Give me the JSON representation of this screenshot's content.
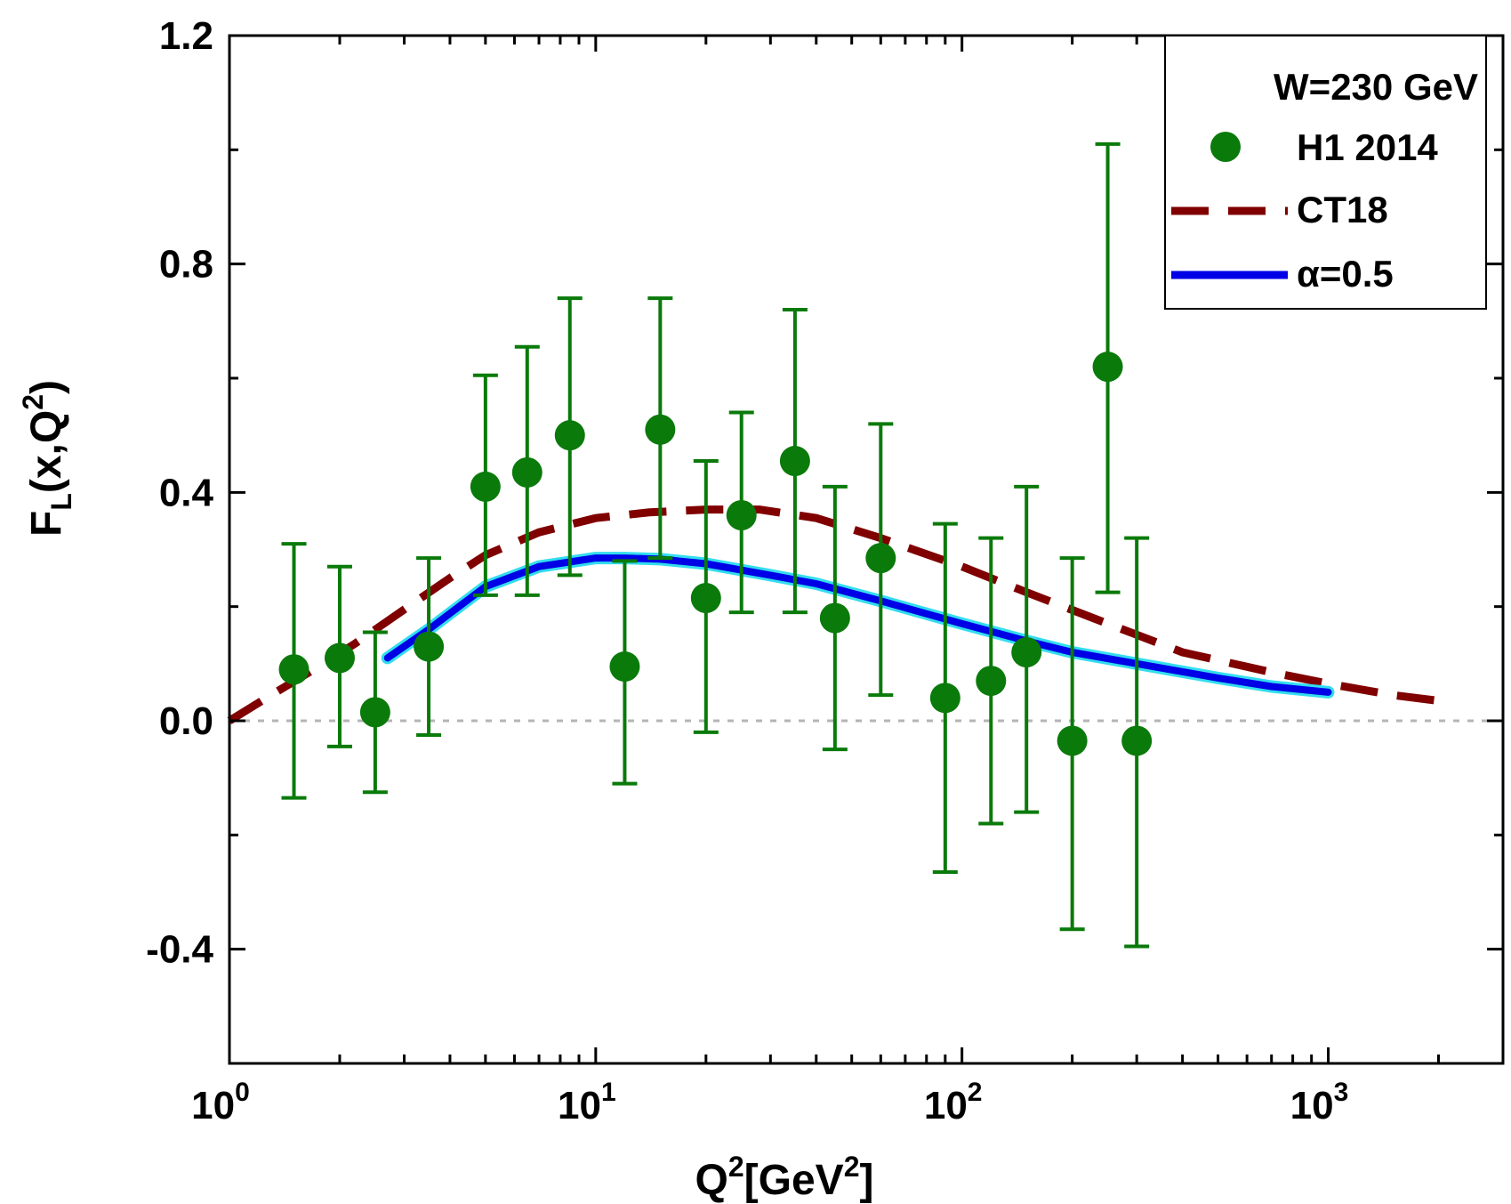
{
  "chart_data": {
    "type": "scatter",
    "xscale": "log",
    "xlim": [
      1,
      3000
    ],
    "ylim": [
      -0.6,
      1.2
    ],
    "xlabel": {
      "base": "Q",
      "sup1": "2",
      "mid": "[GeV",
      "sup2": "2",
      "end": "]"
    },
    "ylabel": {
      "base": "F",
      "sub": "L",
      "mid": "(x,Q",
      "sup": "2",
      "end": ")"
    },
    "xticks": [
      {
        "value": 1,
        "base": "10",
        "exp": "0"
      },
      {
        "value": 10,
        "base": "10",
        "exp": "1"
      },
      {
        "value": 100,
        "base": "10",
        "exp": "2"
      },
      {
        "value": 1000,
        "base": "10",
        "exp": "3"
      }
    ],
    "yticks": [
      {
        "value": 1.2,
        "label": "1.2"
      },
      {
        "value": 0.8,
        "label": "0.8"
      },
      {
        "value": 0.4,
        "label": "0.4"
      },
      {
        "value": 0.0,
        "label": "0.0"
      },
      {
        "value": -0.4,
        "label": "-0.4"
      }
    ],
    "yminor": [
      1.0,
      0.6,
      0.2,
      -0.2,
      -0.6
    ],
    "reference_line_y": 0,
    "legend": {
      "title": "W=230 GeV",
      "position": "top-right"
    },
    "series": [
      {
        "name": "H1 2014",
        "kind": "points_with_errors",
        "color": "#0a7a0a",
        "x": [
          1.5,
          2.0,
          2.5,
          3.5,
          5.0,
          6.5,
          8.5,
          12,
          15,
          20,
          25,
          35,
          45,
          60,
          90,
          120,
          150,
          200,
          250,
          300
        ],
        "y": [
          0.09,
          0.11,
          0.015,
          0.13,
          0.41,
          0.435,
          0.5,
          0.095,
          0.51,
          0.215,
          0.36,
          0.455,
          0.18,
          0.285,
          0.04,
          0.07,
          0.12,
          -0.035,
          0.62,
          -0.035
        ],
        "err_low": [
          -0.135,
          -0.045,
          -0.125,
          -0.025,
          0.22,
          0.22,
          0.255,
          -0.11,
          0.285,
          -0.02,
          0.19,
          0.19,
          -0.05,
          0.045,
          -0.265,
          -0.18,
          -0.16,
          -0.365,
          0.225,
          -0.395
        ],
        "err_high": [
          0.31,
          0.27,
          0.155,
          0.285,
          0.605,
          0.655,
          0.74,
          0.28,
          0.74,
          0.455,
          0.54,
          0.72,
          0.41,
          0.52,
          0.345,
          0.32,
          0.41,
          0.285,
          1.01,
          0.32
        ]
      },
      {
        "name": "CT18",
        "kind": "dashed_line",
        "color": "#800000",
        "x": [
          1.0,
          1.3,
          1.7,
          2.2,
          3.0,
          4.0,
          5.0,
          7.0,
          10,
          14,
          20,
          28,
          40,
          60,
          100,
          150,
          250,
          400,
          700,
          1000,
          1500,
          2000
        ],
        "y": [
          0.0,
          0.045,
          0.09,
          0.135,
          0.195,
          0.25,
          0.29,
          0.33,
          0.355,
          0.365,
          0.37,
          0.37,
          0.355,
          0.32,
          0.27,
          0.225,
          0.17,
          0.12,
          0.085,
          0.065,
          0.045,
          0.035
        ]
      },
      {
        "name": "α=0.5",
        "kind": "solid_line",
        "color": "#0000e6",
        "outline_color": "#33ddee",
        "x": [
          2.7,
          3.5,
          5.0,
          7.0,
          10,
          12,
          15,
          20,
          30,
          40,
          60,
          100,
          150,
          200,
          300,
          500,
          700,
          1000
        ],
        "y": [
          0.11,
          0.16,
          0.235,
          0.27,
          0.285,
          0.285,
          0.283,
          0.275,
          0.255,
          0.24,
          0.21,
          0.17,
          0.14,
          0.12,
          0.1,
          0.075,
          0.06,
          0.05
        ]
      }
    ]
  }
}
